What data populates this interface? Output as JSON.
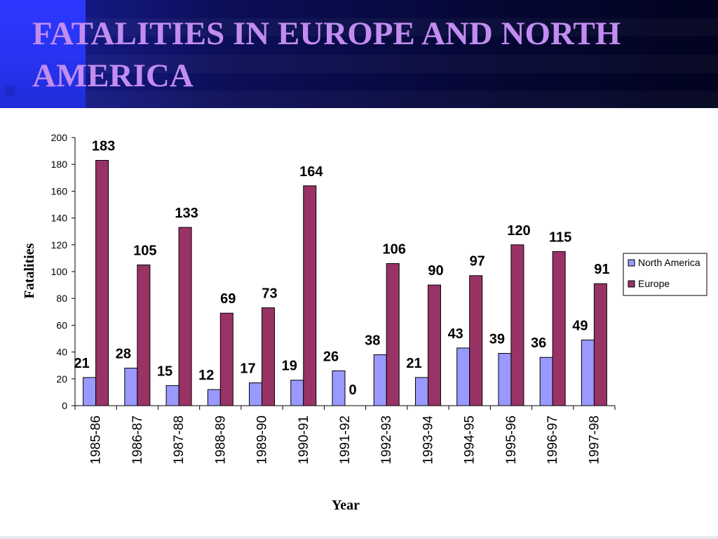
{
  "slide": {
    "title": "FATALITIES IN EUROPE AND NORTH AMERICA",
    "header_accent": "#2d38ff",
    "title_color": "#c28cf0"
  },
  "chart_data": {
    "type": "bar",
    "title": "",
    "xlabel": "Year",
    "ylabel": "Fatalities",
    "ylim": [
      0,
      200
    ],
    "yticks": [
      0,
      20,
      40,
      60,
      80,
      100,
      120,
      140,
      160,
      180,
      200
    ],
    "grid": false,
    "legend_position": "right",
    "categories": [
      "1985-86",
      "1986-87",
      "1987-88",
      "1988-89",
      "1989-90",
      "1990-91",
      "1991-92",
      "1992-93",
      "1993-94",
      "1994-95",
      "1995-96",
      "1996-97",
      "1997-98"
    ],
    "series": [
      {
        "name": "North America",
        "color": "#9999ff",
        "values": [
          21,
          28,
          15,
          12,
          17,
          19,
          26,
          38,
          21,
          43,
          39,
          36,
          49
        ]
      },
      {
        "name": "Europe",
        "color": "#993366",
        "values": [
          183,
          105,
          133,
          69,
          73,
          164,
          0,
          106,
          90,
          97,
          120,
          115,
          91
        ]
      }
    ]
  }
}
